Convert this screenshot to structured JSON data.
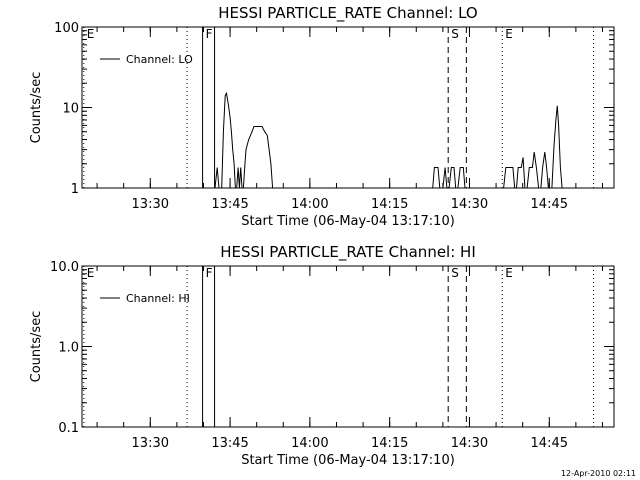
{
  "chart_data": [
    {
      "type": "line",
      "title": "HESSI PARTICLE_RATE Channel: LO",
      "xlabel": "Start Time (06-May-04 13:17:10)",
      "ylabel": "Counts/sec",
      "yscale": "log",
      "xlim": [
        "13:17:10",
        "14:57:10"
      ],
      "ylim": [
        1,
        100
      ],
      "x_ticks": [
        "13:30",
        "13:45",
        "14:00",
        "14:15",
        "14:30",
        "14:45"
      ],
      "y_ticks": [
        {
          "value": 1,
          "label": "1"
        },
        {
          "value": 10,
          "label": "10"
        },
        {
          "value": 100,
          "label": "100"
        }
      ],
      "grid": false,
      "legend": {
        "position": "top-left",
        "entries": [
          "Channel: LO"
        ]
      },
      "event_markers": [
        {
          "time": "13:17:30",
          "style": "dotted",
          "label": "E"
        },
        {
          "time": "13:36:55",
          "style": "dotted",
          "label": ""
        },
        {
          "time": "13:39:50",
          "style": "solid",
          "label": "F"
        },
        {
          "time": "13:42:05",
          "style": "solid",
          "label": ""
        },
        {
          "time": "14:26:00",
          "style": "dashed",
          "label": "S"
        },
        {
          "time": "14:29:25",
          "style": "dashed",
          "label": ""
        },
        {
          "time": "14:36:10",
          "style": "dotted",
          "label": "E"
        },
        {
          "time": "14:53:20",
          "style": "dotted",
          "label": ""
        }
      ],
      "series": [
        {
          "name": "Channel: LO",
          "segments": [
            [
              [
                "13:42:10",
                1.0
              ],
              [
                "13:42:35",
                1.8
              ],
              [
                "13:42:55",
                1.0
              ],
              [
                "13:43:25",
                1.0
              ],
              [
                "13:43:45",
                5.0
              ],
              [
                "13:44:05",
                14.0
              ],
              [
                "13:44:20",
                15.0
              ],
              [
                "13:44:40",
                11.0
              ],
              [
                "13:45:00",
                7.5
              ],
              [
                "13:45:15",
                5.0
              ],
              [
                "13:45:30",
                3.0
              ],
              [
                "13:45:45",
                2.0
              ],
              [
                "13:46:00",
                1.0
              ],
              [
                "13:46:15",
                1.0
              ],
              [
                "13:46:30",
                1.8
              ],
              [
                "13:46:45",
                1.0
              ],
              [
                "13:47:00",
                1.8
              ],
              [
                "13:47:15",
                1.0
              ],
              [
                "13:47:30",
                1.0
              ],
              [
                "13:47:45",
                1.8
              ],
              [
                "13:48:00",
                3.0
              ],
              [
                "13:48:15",
                3.5
              ],
              [
                "13:48:30",
                4.0
              ],
              [
                "13:49:00",
                4.8
              ],
              [
                "13:49:30",
                5.8
              ],
              [
                "13:51:00",
                5.8
              ],
              [
                "13:51:30",
                5.0
              ],
              [
                "13:52:00",
                4.5
              ],
              [
                "13:52:20",
                3.0
              ],
              [
                "13:52:40",
                2.0
              ],
              [
                "13:53:00",
                1.0
              ]
            ],
            [
              [
                "14:23:05",
                1.0
              ],
              [
                "14:23:25",
                1.8
              ],
              [
                "14:24:05",
                1.8
              ],
              [
                "14:24:25",
                1.0
              ],
              [
                "14:25:00",
                1.0
              ],
              [
                "14:25:25",
                1.8
              ],
              [
                "14:25:45",
                1.0
              ],
              [
                "14:26:10",
                1.0
              ],
              [
                "14:26:35",
                1.8
              ],
              [
                "14:27:05",
                1.8
              ],
              [
                "14:27:25",
                1.0
              ],
              [
                "14:27:50",
                1.0
              ],
              [
                "14:28:15",
                1.8
              ],
              [
                "14:28:50",
                1.8
              ],
              [
                "14:29:10",
                1.0
              ]
            ],
            [
              [
                "14:36:25",
                1.0
              ],
              [
                "14:36:50",
                1.8
              ],
              [
                "14:38:10",
                1.8
              ],
              [
                "14:38:30",
                1.0
              ],
              [
                "14:38:50",
                1.0
              ],
              [
                "14:39:10",
                1.8
              ],
              [
                "14:39:45",
                1.8
              ],
              [
                "14:40:05",
                2.4
              ],
              [
                "14:40:25",
                1.0
              ],
              [
                "14:40:50",
                1.0
              ],
              [
                "14:41:15",
                1.8
              ],
              [
                "14:41:50",
                1.8
              ],
              [
                "14:42:10",
                2.8
              ],
              [
                "14:42:35",
                1.8
              ],
              [
                "14:43:00",
                1.0
              ],
              [
                "14:43:25",
                1.0
              ],
              [
                "14:43:45",
                1.8
              ],
              [
                "14:44:10",
                2.8
              ],
              [
                "14:44:30",
                1.8
              ],
              [
                "14:44:50",
                1.0
              ],
              [
                "14:45:30",
                1.0
              ],
              [
                "14:45:55",
                3.5
              ],
              [
                "14:46:15",
                7.0
              ],
              [
                "14:46:30",
                10.5
              ],
              [
                "14:46:45",
                6.0
              ],
              [
                "14:47:05",
                1.8
              ],
              [
                "14:47:25",
                1.0
              ]
            ]
          ]
        }
      ]
    },
    {
      "type": "line",
      "title": "HESSI PARTICLE_RATE Channel: HI",
      "xlabel": "Start Time (06-May-04 13:17:10)",
      "ylabel": "Counts/sec",
      "yscale": "log",
      "xlim": [
        "13:17:10",
        "14:57:10"
      ],
      "ylim": [
        0.1,
        10
      ],
      "x_ticks": [
        "13:30",
        "13:45",
        "14:00",
        "14:15",
        "14:30",
        "14:45"
      ],
      "y_ticks": [
        {
          "value": 0.1,
          "label": "0.1"
        },
        {
          "value": 1,
          "label": "1.0"
        },
        {
          "value": 10,
          "label": "10.0"
        }
      ],
      "grid": false,
      "legend": {
        "position": "top-left",
        "entries": [
          "Channel: HI"
        ]
      },
      "event_markers": [
        {
          "time": "13:17:30",
          "style": "dotted",
          "label": "E"
        },
        {
          "time": "13:36:55",
          "style": "dotted",
          "label": ""
        },
        {
          "time": "13:39:50",
          "style": "solid",
          "label": "F"
        },
        {
          "time": "13:42:05",
          "style": "solid",
          "label": ""
        },
        {
          "time": "14:26:00",
          "style": "dashed",
          "label": "S"
        },
        {
          "time": "14:29:25",
          "style": "dashed",
          "label": ""
        },
        {
          "time": "14:36:10",
          "style": "dotted",
          "label": "E"
        },
        {
          "time": "14:53:20",
          "style": "dotted",
          "label": ""
        }
      ],
      "series": [
        {
          "name": "Channel: HI",
          "segments": []
        }
      ]
    }
  ],
  "footer": {
    "timestamp": "12-Apr-2010 02:11"
  }
}
